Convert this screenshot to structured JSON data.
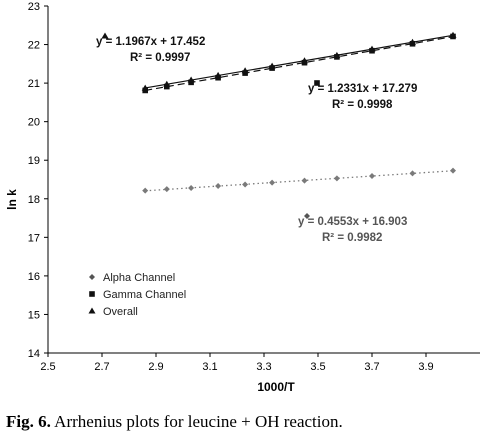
{
  "chart_data": {
    "type": "scatter",
    "xlabel": "1000/T",
    "ylabel": "ln k",
    "xlim": [
      2.5,
      4.1
    ],
    "ylim": [
      14,
      23
    ],
    "xticks": [
      "2.5",
      "2.7",
      "2.9",
      "3.1",
      "3.3",
      "3.5",
      "3.7",
      "3.9"
    ],
    "yticks": [
      "14",
      "15",
      "16",
      "17",
      "18",
      "19",
      "20",
      "21",
      "22",
      "23"
    ],
    "grid": false,
    "legend_position": "bottom-left",
    "series": [
      {
        "name": "Alpha Channel",
        "marker": "diamond",
        "line": "dotted",
        "x": [
          2.86,
          2.94,
          3.03,
          3.13,
          3.23,
          3.33,
          3.45,
          3.57,
          3.7,
          3.85,
          4.0
        ],
        "y": [
          18.21,
          18.25,
          18.28,
          18.33,
          18.37,
          18.42,
          18.47,
          18.53,
          18.59,
          18.66,
          18.73
        ],
        "trendline": {
          "equation": "y = 0.4553x + 16.903",
          "r2": "R² = 0.9982"
        }
      },
      {
        "name": "Gamma Channel",
        "marker": "square",
        "line": "dashed",
        "x": [
          2.86,
          2.94,
          3.03,
          3.13,
          3.23,
          3.33,
          3.45,
          3.57,
          3.7,
          3.85,
          4.0
        ],
        "y": [
          20.81,
          20.91,
          21.02,
          21.14,
          21.26,
          21.39,
          21.53,
          21.68,
          21.84,
          22.02,
          22.21
        ],
        "trendline": {
          "equation": "y = 1.2331x + 17.279",
          "r2": "R² = 0.9998"
        }
      },
      {
        "name": "Overall",
        "marker": "triangle",
        "line": "solid",
        "x": [
          2.86,
          2.94,
          3.03,
          3.13,
          3.23,
          3.33,
          3.45,
          3.57,
          3.7,
          3.85,
          4.0
        ],
        "y": [
          20.87,
          20.97,
          21.08,
          21.2,
          21.32,
          21.44,
          21.58,
          21.72,
          21.88,
          22.06,
          22.24
        ],
        "trendline": {
          "equation": "y = 1.1967x + 17.452",
          "r2": "R² = 0.9997"
        }
      }
    ]
  },
  "caption": {
    "label": "Fig. 6.",
    "text": " Arrhenius plots for leucine + OH reaction."
  }
}
